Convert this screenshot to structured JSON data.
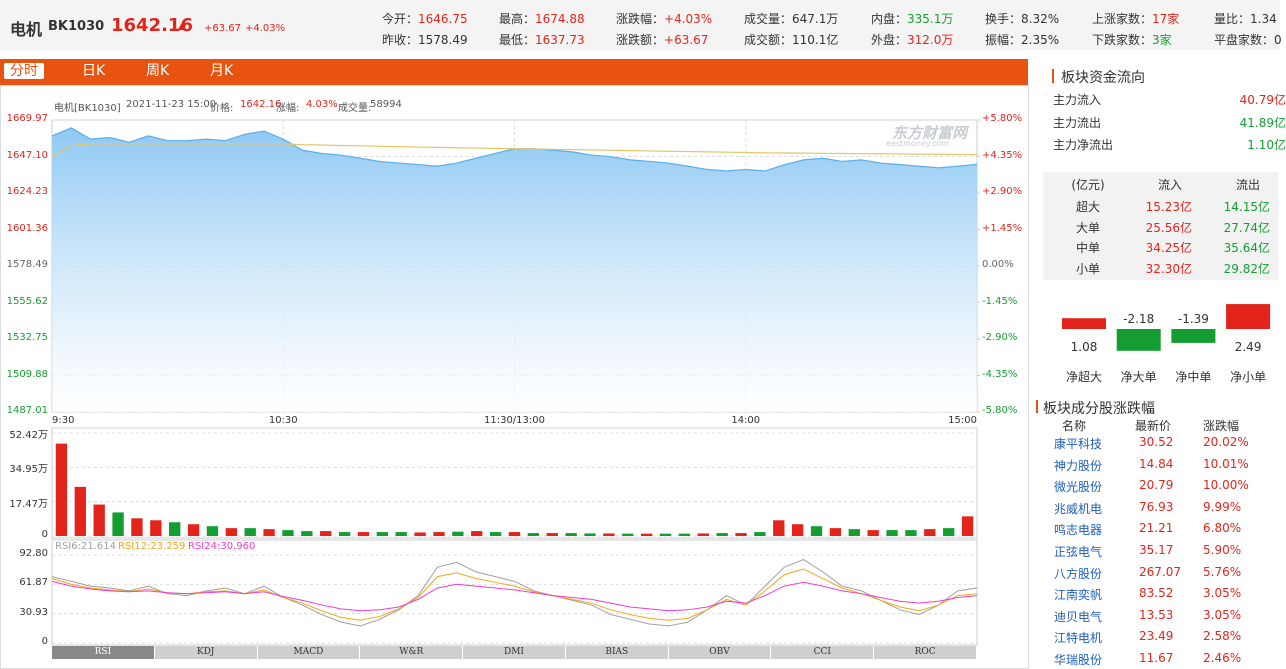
{
  "colors": {
    "up": "#e3241b",
    "down": "#149e31",
    "flat": "#666666",
    "text": "#333333",
    "link": "#1d5fb8"
  },
  "header": {
    "name": "电机",
    "code": "BK1030",
    "price": "1642.16",
    "change": "+63.67",
    "change_pct": "+4.03%",
    "stats": [
      {
        "label": "今开：",
        "value": "1646.75",
        "tone": "up"
      },
      {
        "label": "昨收：",
        "value": "1578.49",
        "tone": "text"
      },
      {
        "label": "最高：",
        "value": "1674.88",
        "tone": "up"
      },
      {
        "label": "最低：",
        "value": "1637.73",
        "tone": "up"
      },
      {
        "label": "涨跌幅：",
        "value": "+4.03%",
        "tone": "up"
      },
      {
        "label": "涨跌额：",
        "value": "+63.67",
        "tone": "up"
      },
      {
        "label": "成交量：",
        "value": "647.1万",
        "tone": "text"
      },
      {
        "label": "成交额：",
        "value": "110.1亿",
        "tone": "text"
      },
      {
        "label": "内盘：",
        "value": "335.1万",
        "tone": "down"
      },
      {
        "label": "外盘：",
        "value": "312.0万",
        "tone": "up"
      },
      {
        "label": "换手：",
        "value": "8.32%",
        "tone": "text"
      },
      {
        "label": "振幅：",
        "value": "2.35%",
        "tone": "text"
      },
      {
        "label": "上涨家数：",
        "value": "17家",
        "tone": "up"
      },
      {
        "label": "下跌家数：",
        "value": "3家",
        "tone": "down"
      },
      {
        "label": "量比：",
        "value": "1.34",
        "tone": "text"
      },
      {
        "label": "平盘家数：",
        "value": "0",
        "tone": "text"
      }
    ]
  },
  "tabs": {
    "items": [
      "分时",
      "日K",
      "周K",
      "月K"
    ],
    "selected": 0
  },
  "chart_data": [
    {
      "type": "line",
      "info": [
        "电机[BK1030]",
        "2021-11-23 15:00",
        "价格:",
        "1642.16",
        "涨幅:",
        "4.03%",
        "成交量:",
        "58994"
      ],
      "watermark": [
        "东方财富网",
        "eastmoney.com"
      ],
      "categories": [
        "9:30",
        null,
        null,
        null,
        null,
        null,
        null,
        null,
        null,
        null,
        null,
        null,
        "10:30",
        null,
        null,
        null,
        null,
        null,
        null,
        null,
        null,
        null,
        null,
        null,
        "11:30/13:00",
        null,
        null,
        null,
        null,
        null,
        null,
        null,
        null,
        null,
        null,
        null,
        "14:00",
        null,
        null,
        null,
        null,
        null,
        null,
        null,
        null,
        null,
        null,
        null,
        "15:00"
      ],
      "series": [
        {
          "color": "#5aaee8",
          "fill": "#a9d5f7",
          "values": [
            1660,
            1665,
            1658,
            1659,
            1656,
            1660,
            1657,
            1657,
            1658,
            1657,
            1661,
            1663,
            1658,
            1651,
            1649,
            1648,
            1646,
            1644,
            1643,
            1642,
            1641,
            1643,
            1646,
            1649,
            1652,
            1652,
            1651,
            1650,
            1648,
            1647,
            1645,
            1644,
            1643,
            1641,
            1639,
            1638,
            1639,
            1638,
            1642,
            1645,
            1646,
            1644,
            1645,
            1643,
            1642,
            1641,
            1640,
            1641,
            1642.16
          ]
        },
        {
          "color": "#e6c46a",
          "values": [
            1647,
            1654,
            1655,
            1655,
            1655,
            1655,
            1655,
            1655,
            1655,
            1655,
            1655,
            1655,
            1655,
            1654.5,
            1654.3,
            1654,
            1653.8,
            1653.5,
            1653.3,
            1653,
            1652.8,
            1652.6,
            1652.4,
            1652.2,
            1652,
            1651.8,
            1651.6,
            1651.4,
            1651.2,
            1651,
            1650.8,
            1650.6,
            1650.4,
            1650.2,
            1650,
            1649.8,
            1649.6,
            1649.4,
            1649.3,
            1649.2,
            1649.1,
            1649,
            1648.9,
            1648.8,
            1648.7,
            1648.6,
            1648.5,
            1648.4,
            1648.3
          ]
        }
      ],
      "ylim": [
        1487.01,
        1669.97
      ],
      "yticks": [
        1669.97,
        {
          "value": 1647.1,
          "label": "1647.10"
        },
        1624.23,
        1601.36,
        1578.49,
        1555.62,
        1532.75,
        1509.88,
        1487.01
      ],
      "y2lim": [
        -5.8,
        5.8
      ],
      "y2ticks": [
        {
          "value": 5.8,
          "label": "+5.80%"
        },
        {
          "value": 4.35,
          "label": "+4.35%"
        },
        {
          "value": 2.9,
          "label": "+2.90%"
        },
        {
          "value": 1.45,
          "label": "+1.45%"
        },
        {
          "value": 0,
          "label": "0.00%"
        },
        {
          "value": -1.45,
          "label": "-1.45%"
        },
        {
          "value": -2.9,
          "label": "-2.90%"
        },
        {
          "value": -4.35,
          "label": "-4.35%"
        },
        {
          "value": -5.8,
          "label": "-5.80%"
        }
      ],
      "grid": true
    },
    {
      "type": "bar",
      "values": [
        47,
        25,
        16,
        12,
        9,
        8,
        7,
        6,
        5,
        4,
        4,
        3.5,
        3,
        2.5,
        2.5,
        2,
        2,
        2,
        2,
        1.8,
        2,
        2.2,
        2.5,
        2,
        2,
        1.5,
        1.5,
        1.5,
        1.3,
        1.3,
        1.2,
        1.2,
        1.2,
        1.2,
        1.3,
        1.5,
        1.5,
        2,
        8,
        6,
        5,
        4,
        3.5,
        3,
        3,
        3,
        3.5,
        4,
        10
      ],
      "up": [
        true,
        true,
        true,
        false,
        true,
        true,
        false,
        true,
        false,
        true,
        false,
        true,
        false,
        false,
        true,
        false,
        true,
        false,
        false,
        true,
        true,
        false,
        true,
        false,
        true,
        false,
        true,
        false,
        false,
        true,
        false,
        true,
        false,
        false,
        true,
        false,
        true,
        false,
        true,
        true,
        false,
        true,
        false,
        true,
        false,
        false,
        true,
        false,
        true
      ],
      "ylim": [
        0,
        52.42
      ],
      "yticks": [
        {
          "value": 52.42,
          "label": "52.42万"
        },
        {
          "value": 34.95,
          "label": "34.95万"
        },
        {
          "value": 17.47,
          "label": "17.47万"
        },
        0
      ],
      "grid": true
    },
    {
      "type": "line",
      "series": [
        {
          "name": "RSI6:21.614",
          "color": "#a0a0a0",
          "values": [
            70,
            65,
            60,
            58,
            55,
            60,
            52,
            50,
            55,
            58,
            52,
            60,
            48,
            40,
            30,
            22,
            18,
            25,
            35,
            50,
            80,
            85,
            75,
            70,
            65,
            55,
            50,
            45,
            40,
            30,
            25,
            20,
            18,
            22,
            35,
            50,
            40,
            60,
            80,
            88,
            75,
            60,
            55,
            45,
            35,
            30,
            40,
            55,
            58
          ]
        },
        {
          "name": "RSI12:23.259",
          "color": "#f0a818",
          "values": [
            68,
            62,
            58,
            56,
            54,
            57,
            53,
            52,
            54,
            55,
            52,
            56,
            48,
            42,
            34,
            27,
            24,
            28,
            36,
            48,
            70,
            74,
            68,
            64,
            60,
            54,
            50,
            46,
            42,
            35,
            30,
            26,
            24,
            26,
            35,
            46,
            40,
            55,
            72,
            78,
            68,
            58,
            52,
            45,
            38,
            34,
            40,
            50,
            52
          ]
        },
        {
          "name": "RSI24:30.960",
          "color": "#ee3cd8",
          "values": [
            65,
            60,
            57,
            55,
            54,
            55,
            53,
            52,
            53,
            54,
            52,
            54,
            49,
            45,
            40,
            36,
            34,
            35,
            38,
            46,
            58,
            62,
            60,
            58,
            56,
            53,
            50,
            48,
            46,
            42,
            38,
            36,
            34,
            35,
            38,
            44,
            42,
            50,
            60,
            64,
            60,
            55,
            52,
            48,
            44,
            42,
            44,
            48,
            50
          ]
        }
      ],
      "ylim": [
        0,
        92.8
      ],
      "yticks": [
        {
          "value": 92.8,
          "label": "92.80"
        },
        61.87,
        30.93,
        0
      ],
      "grid": true,
      "indicators": [
        "RSI",
        "KDJ",
        "MACD",
        "W&R",
        "DMI",
        "BIAS",
        "OBV",
        "CCI",
        "ROC"
      ],
      "selected": 0
    },
    {
      "type": "bar",
      "categories": [
        "净超大",
        "净大单",
        "净中单",
        "净小单"
      ],
      "values": [
        1.08,
        -2.18,
        -1.39,
        2.49
      ],
      "ylim": [
        -3,
        3
      ]
    }
  ],
  "fund_flow": {
    "title": "板块资金流向",
    "rows": [
      {
        "label": "主力流入",
        "value": "40.79亿",
        "tone": "up"
      },
      {
        "label": "主力流出",
        "value": "41.89亿",
        "tone": "down"
      },
      {
        "label": "主力净流出",
        "value": "1.10亿",
        "tone": "down"
      }
    ],
    "table": {
      "header": [
        "(亿元)",
        "流入",
        "流出"
      ],
      "rows": [
        [
          "超大",
          "15.23亿",
          "14.15亿"
        ],
        [
          "大单",
          "25.56亿",
          "27.74亿"
        ],
        [
          "中单",
          "34.25亿",
          "35.64亿"
        ],
        [
          "小单",
          "32.30亿",
          "29.82亿"
        ]
      ]
    }
  },
  "stocks": {
    "title": "板块成分股涨跌幅",
    "header": [
      "名称",
      "最新价",
      "涨跌幅"
    ],
    "rows": [
      [
        "康平科技",
        "30.52",
        "20.02%"
      ],
      [
        "神力股份",
        "14.84",
        "10.01%"
      ],
      [
        "微光股份",
        "20.79",
        "10.00%"
      ],
      [
        "兆威机电",
        "76.93",
        "9.99%"
      ],
      [
        "鸣志电器",
        "21.21",
        "6.80%"
      ],
      [
        "正弦电气",
        "35.17",
        "5.90%"
      ],
      [
        "八方股份",
        "267.07",
        "5.76%"
      ],
      [
        "江南奕帆",
        "83.52",
        "3.05%"
      ],
      [
        "迪贝电气",
        "13.53",
        "3.05%"
      ],
      [
        "江特电机",
        "23.49",
        "2.58%"
      ],
      [
        "华瑞股份",
        "11.67",
        "2.46%"
      ]
    ]
  }
}
